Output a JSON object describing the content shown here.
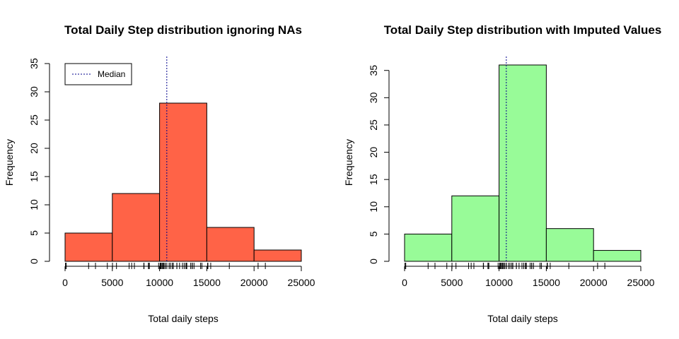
{
  "chart_data": [
    {
      "type": "bar",
      "title": "Total Daily Step distribution ignoring NAs",
      "xlabel": "Total daily steps",
      "ylabel": "Frequency",
      "bins": [
        [
          0,
          5000
        ],
        [
          5000,
          10000
        ],
        [
          10000,
          15000
        ],
        [
          15000,
          20000
        ],
        [
          20000,
          25000
        ]
      ],
      "values": [
        5,
        12,
        28,
        6,
        2
      ],
      "xlim": [
        0,
        25000
      ],
      "ylim": [
        0,
        35
      ],
      "x_ticks": [
        0,
        5000,
        10000,
        15000,
        20000,
        25000
      ],
      "x_tick_labels": [
        "0",
        "5000",
        "10000",
        "15000",
        "20000",
        "25000"
      ],
      "y_ticks": [
        0,
        5,
        10,
        15,
        20,
        25,
        30,
        35
      ],
      "y_tick_labels": [
        "0",
        "5",
        "10",
        "15",
        "20",
        "25",
        "30",
        "35"
      ],
      "bar_color": "#FF6347",
      "median": 10765,
      "median_color": "#00008B",
      "legend": {
        "entries": [
          "Median"
        ],
        "placement": "top-left"
      },
      "rug": [
        41,
        126,
        2492,
        3219,
        4472,
        5018,
        5441,
        6778,
        7047,
        7336,
        8334,
        8355,
        8821,
        8841,
        8918,
        9900,
        10056,
        10119,
        10139,
        10183,
        10304,
        10395,
        10439,
        10571,
        10600,
        10765,
        11015,
        11162,
        11352,
        11458,
        11829,
        11834,
        12116,
        12426,
        12608,
        12787,
        12811,
        12883,
        13294,
        13452,
        13460,
        13646,
        14339,
        14478,
        15084,
        15098,
        15110,
        15414,
        17382,
        20427,
        21194
      ]
    },
    {
      "type": "bar",
      "title": "Total Daily Step distribution with Imputed Values",
      "xlabel": "Total daily steps",
      "ylabel": "Frequency",
      "bins": [
        [
          0,
          5000
        ],
        [
          5000,
          10000
        ],
        [
          10000,
          15000
        ],
        [
          15000,
          20000
        ],
        [
          20000,
          25000
        ]
      ],
      "values": [
        5,
        12,
        36,
        6,
        2
      ],
      "xlim": [
        0,
        25000
      ],
      "ylim": [
        0,
        36
      ],
      "x_ticks": [
        0,
        5000,
        10000,
        15000,
        20000,
        25000
      ],
      "x_tick_labels": [
        "0",
        "5000",
        "10000",
        "15000",
        "20000",
        "25000"
      ],
      "y_ticks": [
        0,
        5,
        10,
        15,
        20,
        25,
        30,
        35
      ],
      "y_tick_labels": [
        "0",
        "5",
        "10",
        "15",
        "20",
        "25",
        "30",
        "35"
      ],
      "bar_color": "#98FB98",
      "median": 10766,
      "median_color": "#00008B",
      "rug": [
        41,
        126,
        2492,
        3219,
        4472,
        5018,
        5441,
        6778,
        7047,
        7336,
        8334,
        8355,
        8821,
        8841,
        8918,
        9900,
        10056,
        10119,
        10139,
        10183,
        10304,
        10395,
        10439,
        10571,
        10600,
        10765,
        10766,
        11015,
        11162,
        11352,
        11458,
        11829,
        11834,
        12116,
        12426,
        12608,
        12787,
        12811,
        12883,
        13294,
        13452,
        13460,
        13646,
        14339,
        14478,
        15084,
        15098,
        15110,
        15414,
        17382,
        20427,
        21194
      ]
    }
  ]
}
